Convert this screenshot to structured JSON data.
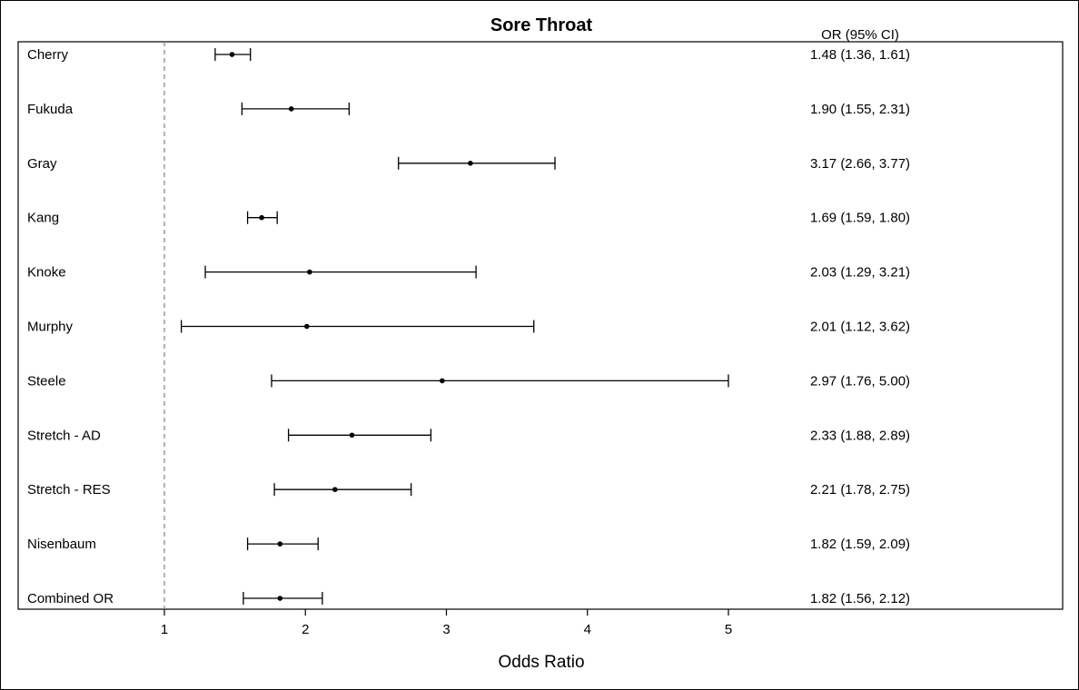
{
  "chart_data": {
    "type": "forest",
    "title": "Sore Throat",
    "column_header": "OR (95% CI)",
    "xlabel": "Odds Ratio",
    "xlim": [
      0.945,
      5.0
    ],
    "xticks": [
      1,
      2,
      3,
      4,
      5
    ],
    "reference_line": 1,
    "studies": [
      {
        "label": "Cherry",
        "or": 1.48,
        "lower": 1.36,
        "upper": 1.61,
        "text": "1.48 (1.36, 1.61)"
      },
      {
        "label": "Fukuda",
        "or": 1.9,
        "lower": 1.55,
        "upper": 2.31,
        "text": "1.90 (1.55, 2.31)"
      },
      {
        "label": "Gray",
        "or": 3.17,
        "lower": 2.66,
        "upper": 3.77,
        "text": "3.17 (2.66, 3.77)"
      },
      {
        "label": "Kang",
        "or": 1.69,
        "lower": 1.59,
        "upper": 1.8,
        "text": "1.69 (1.59, 1.80)"
      },
      {
        "label": "Knoke",
        "or": 2.03,
        "lower": 1.29,
        "upper": 3.21,
        "text": "2.03 (1.29, 3.21)"
      },
      {
        "label": "Murphy",
        "or": 2.01,
        "lower": 1.12,
        "upper": 3.62,
        "text": "2.01 (1.12, 3.62)"
      },
      {
        "label": "Steele",
        "or": 2.97,
        "lower": 1.76,
        "upper": 5.0,
        "text": "2.97 (1.76, 5.00)"
      },
      {
        "label": "Stretch - AD",
        "or": 2.33,
        "lower": 1.88,
        "upper": 2.89,
        "text": "2.33 (1.88, 2.89)"
      },
      {
        "label": "Stretch - RES",
        "or": 2.21,
        "lower": 1.78,
        "upper": 2.75,
        "text": "2.21 (1.78, 2.75)"
      },
      {
        "label": "Nisenbaum",
        "or": 1.82,
        "lower": 1.59,
        "upper": 2.09,
        "text": "1.82 (1.59, 2.09)"
      },
      {
        "label": "Combined OR",
        "or": 1.82,
        "lower": 1.56,
        "upper": 2.12,
        "text": "1.82 (1.56, 2.12)"
      }
    ]
  }
}
